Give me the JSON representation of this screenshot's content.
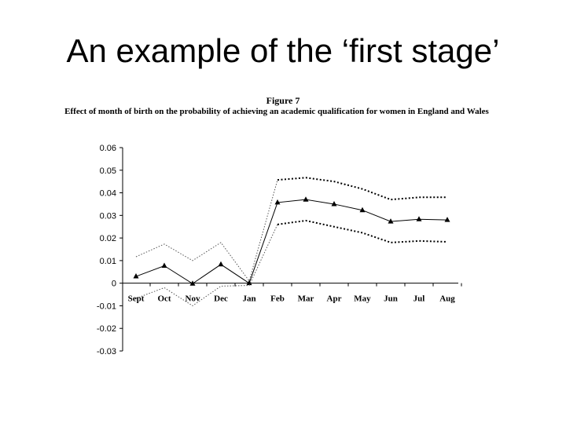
{
  "slide": {
    "title": "An example of the ‘first stage’"
  },
  "chart_data": {
    "type": "line",
    "figure_label": "Figure 7",
    "title": "Effect of month of birth on the probability of achieving an academic qualification for women in England and Wales",
    "categories": [
      "Sept",
      "Oct",
      "Nov",
      "Dec",
      "Jan",
      "Feb",
      "Mar",
      "Apr",
      "May",
      "Jun",
      "Jul",
      "Aug"
    ],
    "yticks": [
      "0.06",
      "0.05",
      "0.04",
      "0.03",
      "0.02",
      "0.01",
      "0",
      "-0.01",
      "-0.02",
      "-0.03"
    ],
    "ylim": [
      -0.03,
      0.06
    ],
    "grid": false,
    "legend": "none",
    "series": [
      {
        "style": "solid-triangle-markers",
        "color": "#000000",
        "values": [
          0.003,
          0.0077,
          -0.0002,
          0.0083,
          0.0,
          0.0357,
          0.037,
          0.035,
          0.0323,
          0.0273,
          0.0283,
          0.028
        ]
      },
      {
        "style": "dotted-upper-band",
        "color": "#000000",
        "values": [
          0.0117,
          0.0173,
          0.01,
          0.018,
          0.001,
          0.0457,
          0.0467,
          0.045,
          0.0417,
          0.037,
          0.038,
          0.038
        ]
      },
      {
        "style": "dotted-lower-band",
        "color": "#000000",
        "values": [
          -0.0067,
          -0.002,
          -0.01,
          -0.0013,
          -0.001,
          0.026,
          0.0277,
          0.025,
          0.0223,
          0.018,
          0.0187,
          0.0183
        ]
      }
    ]
  }
}
